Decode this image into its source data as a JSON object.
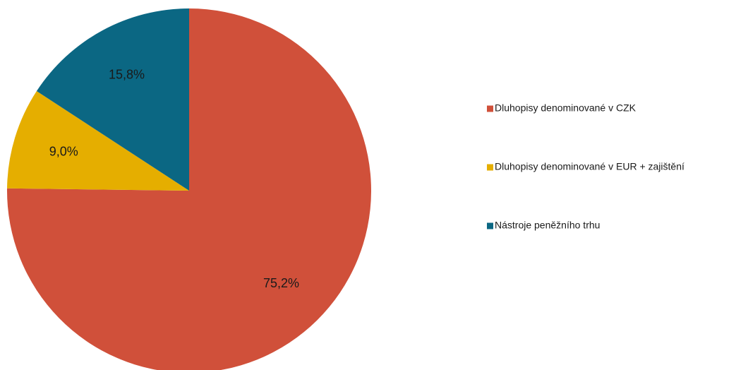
{
  "chart_data": {
    "type": "pie",
    "title": "",
    "legend_position": "right",
    "slices": [
      {
        "label": "Dluhopisy denominované v CZK",
        "value": 75.2,
        "value_label": "75,2%",
        "color": "#D0503A"
      },
      {
        "label": "Dluhopisy denominované v EUR + zajištění",
        "value": 9.0,
        "value_label": "9,0%",
        "color": "#E5AE00"
      },
      {
        "label": "Nástroje peněžního  trhu",
        "value": 15.8,
        "value_label": "15,8%",
        "color": "#0B6783"
      }
    ]
  }
}
